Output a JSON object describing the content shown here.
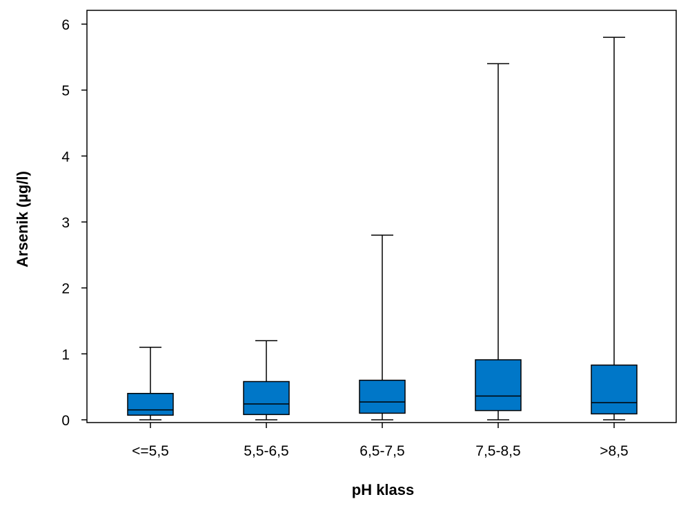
{
  "chart_data": {
    "type": "box",
    "title": "",
    "xlabel": "pH klass",
    "ylabel": "Arsenik (µg/l)",
    "ylim": [
      0,
      6
    ],
    "yticks": [
      "0",
      "1",
      "2",
      "3",
      "4",
      "5",
      "6"
    ],
    "grid": false,
    "categories": [
      "<=5,5",
      "5,5-6,5",
      "6,5-7,5",
      "7,5-8,5",
      ">8,5"
    ],
    "boxes": [
      {
        "category": "<=5,5",
        "min": 0,
        "q1": 0.07,
        "median": 0.15,
        "q3": 0.4,
        "max": 1.1
      },
      {
        "category": "5,5-6,5",
        "min": 0,
        "q1": 0.08,
        "median": 0.24,
        "q3": 0.58,
        "max": 1.2
      },
      {
        "category": "6,5-7,5",
        "min": 0,
        "q1": 0.1,
        "median": 0.27,
        "q3": 0.6,
        "max": 2.8
      },
      {
        "category": "7,5-8,5",
        "min": 0,
        "q1": 0.14,
        "median": 0.36,
        "q3": 0.91,
        "max": 5.4
      },
      {
        "category": ">8,5",
        "min": 0,
        "q1": 0.09,
        "median": 0.26,
        "q3": 0.83,
        "max": 5.8
      }
    ],
    "colors": {
      "box_fill": "#0077C8",
      "line": "#000000"
    }
  }
}
